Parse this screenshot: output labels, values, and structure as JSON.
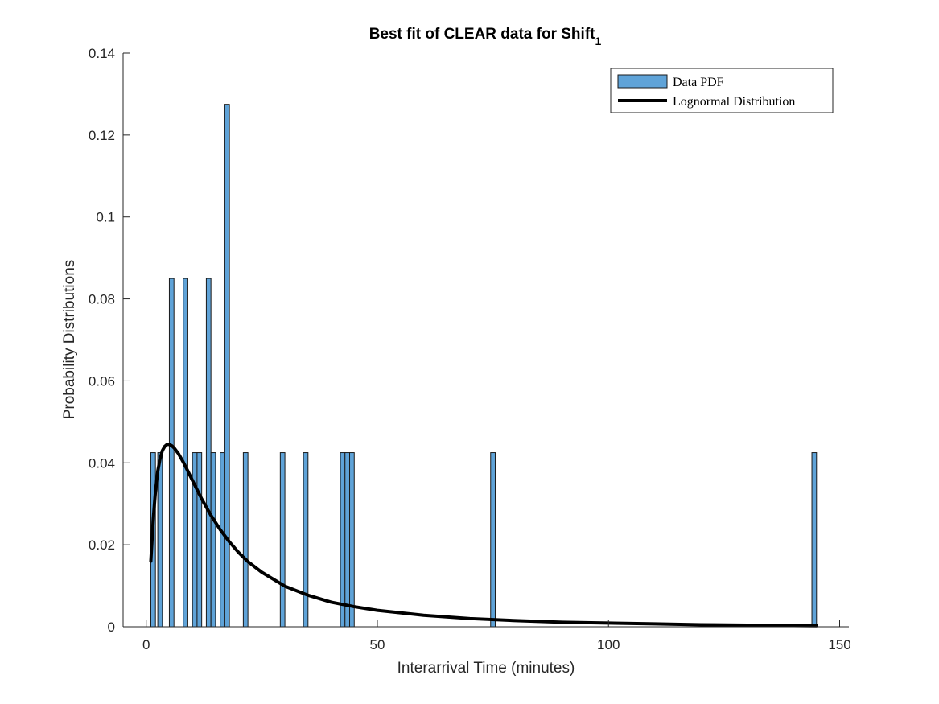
{
  "chart_data": {
    "type": "bar",
    "title": "Best fit of CLEAR data for Shift",
    "title_subscript": "1",
    "xlabel": "Interarrival Time (minutes)",
    "ylabel": "Probability Distributions",
    "xlim": [
      -5,
      152
    ],
    "ylim": [
      0,
      0.14
    ],
    "xticks": [
      0,
      50,
      100,
      150
    ],
    "yticks": [
      0,
      0.02,
      0.04,
      0.06,
      0.08,
      0.1,
      0.12,
      0.14
    ],
    "xtick_labels": [
      "0",
      "50",
      "100",
      "150"
    ],
    "ytick_labels": [
      "0",
      "0.02",
      "0.04",
      "0.06",
      "0.08",
      "0.1",
      "0.12",
      "0.14"
    ],
    "grid": false,
    "legend_position": "top-right",
    "legend": [
      "Data PDF",
      "Lognormal Distribution"
    ],
    "series": [
      {
        "name": "Data PDF",
        "kind": "bar",
        "color": "#5fa3d8",
        "bin_width": 1,
        "x": [
          1.5,
          3,
          5.5,
          8.5,
          10.5,
          11.5,
          13.5,
          14.5,
          16.5,
          17.5,
          21.5,
          29.5,
          34.5,
          42.5,
          43.5,
          44.5,
          75,
          144.5
        ],
        "values": [
          0.0425,
          0.0425,
          0.085,
          0.085,
          0.0425,
          0.0425,
          0.085,
          0.0425,
          0.0425,
          0.1275,
          0.0425,
          0.0425,
          0.0425,
          0.0425,
          0.0425,
          0.0425,
          0.0425,
          0.0425
        ]
      },
      {
        "name": "Lognormal Distribution",
        "kind": "line",
        "color": "#000000",
        "x": [
          1,
          1.5,
          2,
          2.5,
          3,
          3.5,
          4,
          4.5,
          5,
          5.5,
          6,
          7,
          8,
          9,
          10,
          12,
          14,
          16,
          18,
          20,
          22,
          25,
          30,
          35,
          40,
          45,
          50,
          60,
          70,
          80,
          90,
          100,
          110,
          120,
          130,
          140,
          145
        ],
        "values": [
          0.016,
          0.026,
          0.033,
          0.038,
          0.041,
          0.043,
          0.044,
          0.0445,
          0.0445,
          0.0442,
          0.0437,
          0.0422,
          0.0402,
          0.038,
          0.0357,
          0.0312,
          0.0272,
          0.0237,
          0.0207,
          0.0181,
          0.0159,
          0.0133,
          0.0099,
          0.0077,
          0.006,
          0.0049,
          0.004,
          0.0028,
          0.002,
          0.0015,
          0.0011,
          0.0009,
          0.0007,
          0.0005,
          0.0004,
          0.0003,
          0.00025
        ]
      }
    ]
  }
}
